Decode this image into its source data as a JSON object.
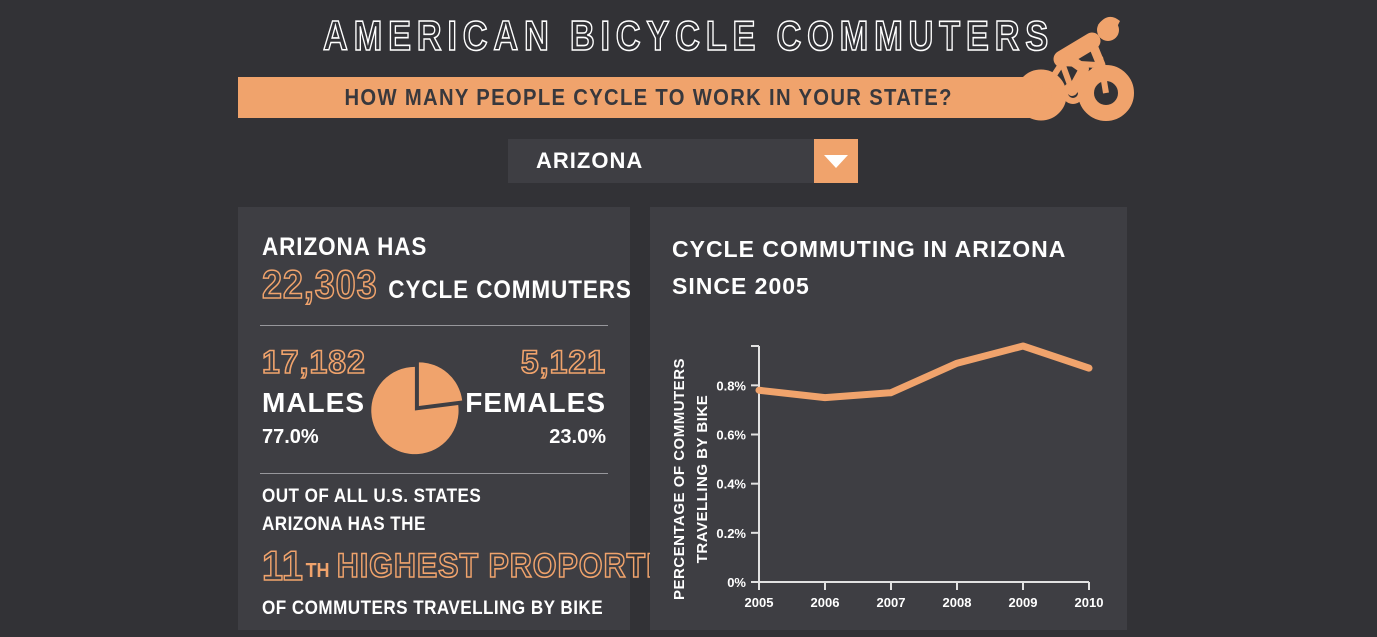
{
  "colors": {
    "accent": "#F0A36C",
    "page_bg": "#323236",
    "panel_bg": "#3E3E43",
    "banner_text": "#38383D",
    "text": "#FFFFFF",
    "axis": "#E2E2E2",
    "divider": "#97979C"
  },
  "header": {
    "title": "AMERICAN BICYCLE COMMUTERS",
    "banner_question": "HOW MANY PEOPLE CYCLE TO WORK IN YOUR STATE?"
  },
  "state_selector": {
    "selected": "ARIZONA"
  },
  "stats_panel": {
    "intro": "ARIZONA HAS",
    "total_count": "22,303",
    "total_label": "CYCLE COMMUTERS",
    "males": {
      "count": "17,182",
      "label": "MALES",
      "percent": "77.0%"
    },
    "females": {
      "count": "5,121",
      "label": "FEMALES",
      "percent": "23.0%"
    },
    "rank": {
      "line1": "OUT OF ALL U.S. STATES",
      "line2": "ARIZONA HAS THE",
      "number": "11",
      "ordinal": "TH",
      "highlight": "HIGHEST PROPORTION",
      "line3": "OF COMMUTERS TRAVELLING BY BIKE"
    }
  },
  "trend_panel": {
    "title_line1": "CYCLE COMMUTING IN ARIZONA",
    "title_line2": "SINCE 2005"
  },
  "chart_data": [
    {
      "type": "pie",
      "labels": [
        "MALES",
        "FEMALES"
      ],
      "values": [
        77.0,
        23.0
      ],
      "counts": [
        17182,
        5121
      ],
      "exploded_slice": "FEMALES",
      "color": "#F0A36C"
    },
    {
      "type": "line",
      "x": [
        2005,
        2006,
        2007,
        2008,
        2009,
        2010
      ],
      "values": [
        0.78,
        0.75,
        0.77,
        0.89,
        0.96,
        0.87
      ],
      "ylabel_line1": "PERCENTAGE OF COMMUTERS",
      "ylabel_line2": "TRAVELLING BY BIKE",
      "yticks": [
        0,
        0.2,
        0.4,
        0.6,
        0.8
      ],
      "ytick_labels": [
        "0%",
        "0.2%",
        "0.4%",
        "0.6%",
        "0.8%"
      ],
      "ylim": [
        0,
        0.96
      ],
      "grid": false,
      "legend": "none",
      "line_color": "#F0A36C"
    }
  ]
}
